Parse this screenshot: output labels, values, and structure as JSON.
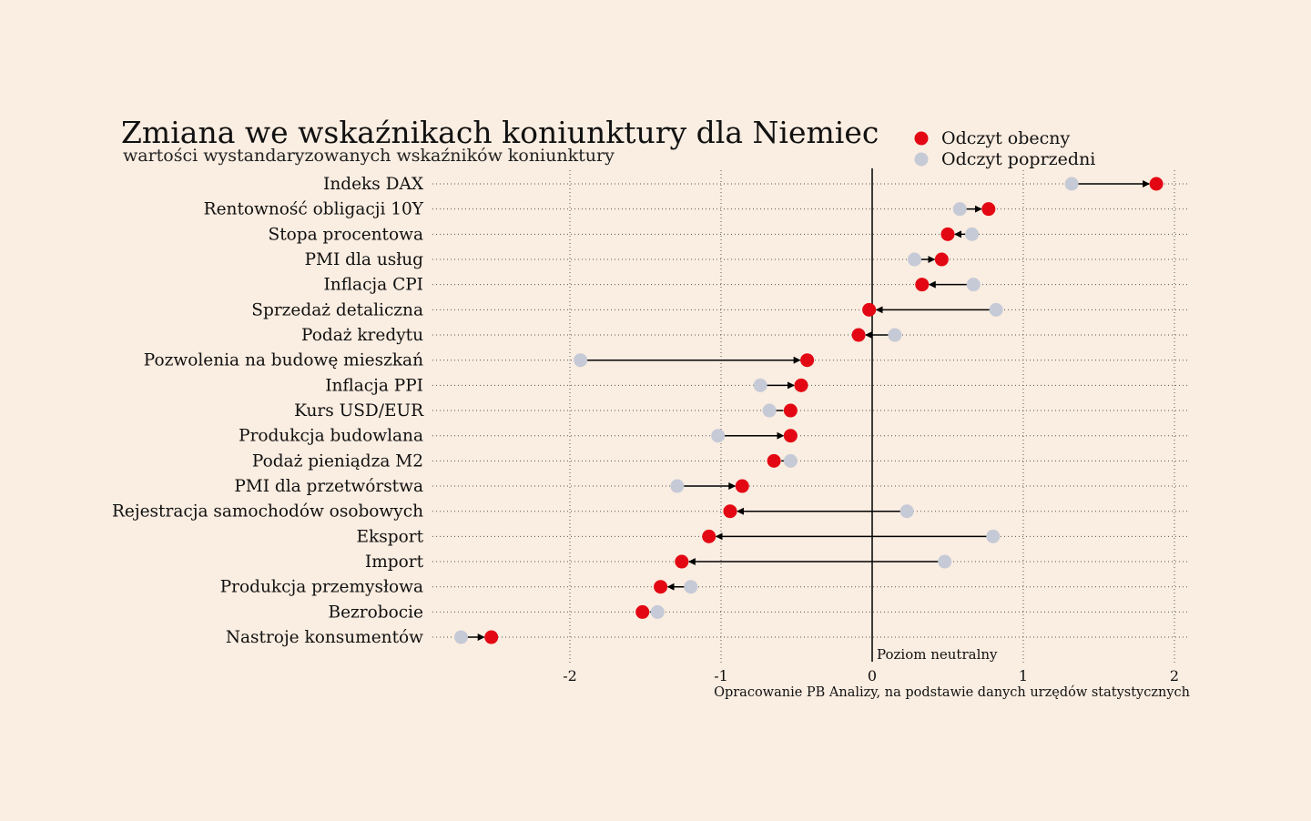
{
  "chart_data": {
    "type": "dumbbell",
    "title": "Zmiana we wskaźnikach koniunktury dla Niemiec",
    "subtitle": "wartości wystandaryzowanych wskaźników koniunktury",
    "xlim": [
      -2.8,
      2.05
    ],
    "xticks": [
      "-2",
      "-1",
      "0",
      "1",
      "2"
    ],
    "xtick_values": [
      -2,
      -1,
      0,
      1,
      2
    ],
    "grid": "dotted",
    "legend_position": "top-right",
    "neutral_label": "Poziom neutralny",
    "source": "Opracowanie PB Analizy, na podstawie danych urzędów statystycznych",
    "series": [
      {
        "name": "Odczyt obecny",
        "color": "#e30613"
      },
      {
        "name": "Odczyt poprzedni",
        "color": "#c5cad6"
      }
    ],
    "categories": [
      "Indeks DAX",
      "Rentowność obligacji 10Y",
      "Stopa procentowa",
      "PMI dla usług",
      "Inflacja CPI",
      "Sprzedaż detaliczna",
      "Podaż kredytu",
      "Pozwolenia na budowę mieszkań",
      "Inflacja PPI",
      "Kurs USD/EUR",
      "Produkcja budowlana",
      "Podaż pieniądza M2",
      "PMI dla przetwórstwa",
      "Rejestracja samochodów osobowych",
      "Eksport",
      "Import",
      "Produkcja przemysłowa",
      "Bezrobocie",
      "Nastroje konsumentów"
    ],
    "current": [
      1.88,
      0.77,
      0.5,
      0.46,
      0.33,
      -0.02,
      -0.09,
      -0.43,
      -0.47,
      -0.54,
      -0.54,
      -0.65,
      -0.86,
      -0.94,
      -1.08,
      -1.26,
      -1.4,
      -1.52,
      -2.52
    ],
    "previous": [
      1.32,
      0.58,
      0.66,
      0.28,
      0.67,
      0.82,
      0.15,
      -1.93,
      -0.74,
      -0.68,
      -1.02,
      -0.54,
      -1.29,
      0.23,
      0.8,
      0.48,
      -1.2,
      -1.42,
      -2.72
    ]
  }
}
